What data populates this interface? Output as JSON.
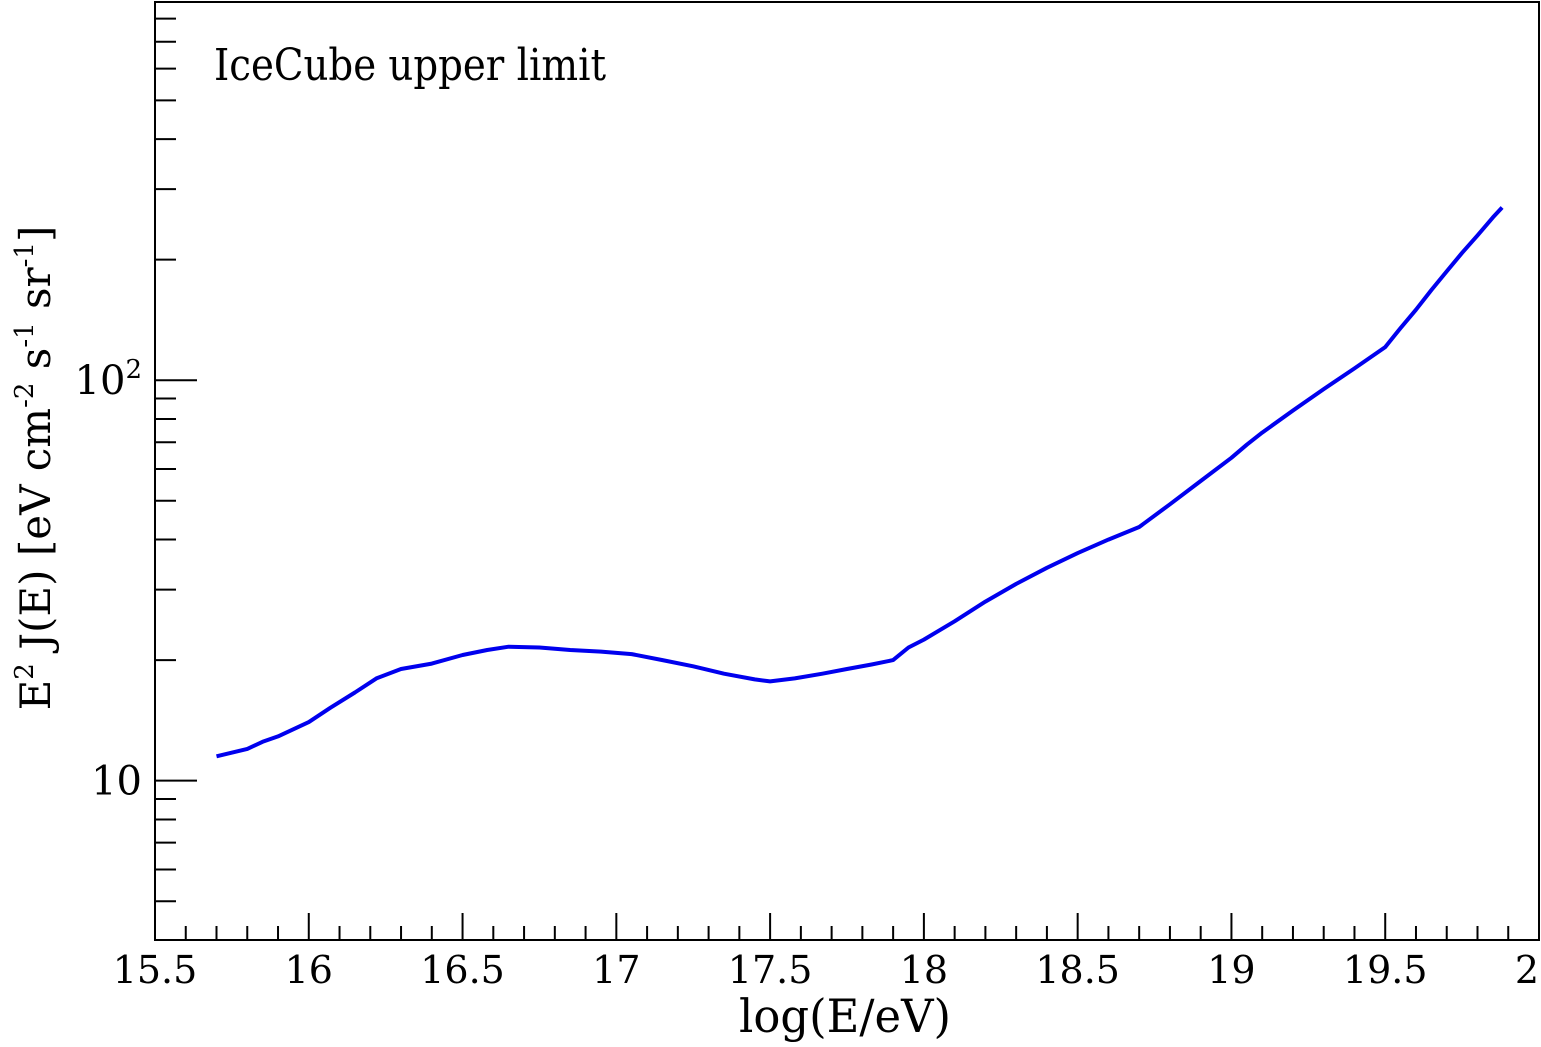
{
  "chart_data": {
    "type": "line",
    "annotation": "IceCube upper limit",
    "xlabel": "log(E/eV)",
    "ylabel": {
      "parts": [
        "E",
        "2",
        " J(E)  [eV cm",
        "-2",
        " s",
        "-1",
        " sr",
        "-1",
        "]"
      ]
    },
    "x_ticks": [
      "15.5",
      "16",
      "16.5",
      "17",
      "17.5",
      "18",
      "18.5",
      "19",
      "19.5",
      "20"
    ],
    "y_ticks": [
      {
        "value": 10,
        "base": "10",
        "exp": ""
      },
      {
        "value": 100,
        "base": "10",
        "exp": "2"
      }
    ],
    "xlim": [
      15.5,
      20.0
    ],
    "ylim": [
      4.0,
      880
    ],
    "yscale": "log",
    "grid": false,
    "series": [
      {
        "color": "#0000ee",
        "x": [
          15.7,
          15.8,
          15.85,
          15.9,
          16.0,
          16.07,
          16.15,
          16.22,
          16.3,
          16.4,
          16.5,
          16.58,
          16.65,
          16.75,
          16.85,
          16.95,
          17.05,
          17.15,
          17.25,
          17.35,
          17.45,
          17.5,
          17.58,
          17.67,
          17.75,
          17.83,
          17.9,
          17.95,
          18.0,
          18.1,
          18.2,
          18.3,
          18.4,
          18.5,
          18.6,
          18.7,
          18.8,
          18.9,
          19.0,
          19.05,
          19.1,
          19.2,
          19.3,
          19.4,
          19.5,
          19.55,
          19.6,
          19.65,
          19.7,
          19.75,
          19.8,
          19.85,
          19.88
        ],
        "y": [
          11.5,
          12.0,
          12.5,
          12.9,
          14.0,
          15.2,
          16.6,
          18.0,
          19.0,
          19.6,
          20.6,
          21.2,
          21.6,
          21.5,
          21.2,
          21.0,
          20.7,
          20.0,
          19.3,
          18.5,
          17.9,
          17.7,
          18.0,
          18.5,
          19.0,
          19.5,
          20.0,
          21.5,
          22.5,
          25.0,
          28.0,
          31.0,
          34.0,
          37.0,
          40.0,
          43.0,
          49.0,
          56.0,
          64.0,
          69.0,
          74.0,
          84.0,
          95.0,
          107.0,
          121.0,
          135.0,
          150.0,
          168.0,
          187.0,
          208.0,
          230.0,
          255.0,
          270.0
        ]
      }
    ]
  }
}
